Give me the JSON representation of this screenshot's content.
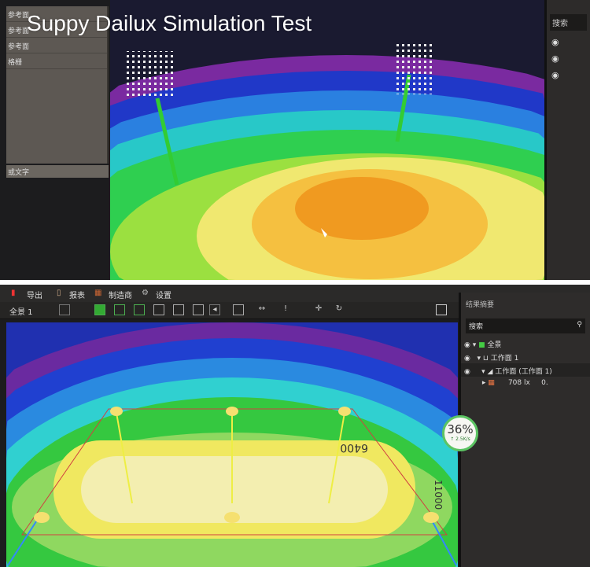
{
  "caption": "Suppy Dailux Simulation Test",
  "top_screen": {
    "left_panel": {
      "rows": [
        "参考面",
        "参考面",
        "参考面",
        "格栅"
      ],
      "footer": "或文字"
    },
    "right_panel": {
      "search": "搜索",
      "eye_icons": 3
    }
  },
  "bottom_screen": {
    "toolbar": {
      "export": "导出",
      "report": "报表",
      "manufacturer": "制造商",
      "settings": "设置"
    },
    "scene_selector": "全景 1",
    "results": {
      "title": "结果摘要",
      "search_placeholder": "搜索",
      "tree": [
        {
          "label": "全景"
        },
        {
          "label": "工作面 1"
        },
        {
          "label": "工作面 (工作面 1)"
        },
        {
          "value": "708",
          "unit": "lx",
          "extra": "0."
        }
      ]
    },
    "dimension_labels": [
      "6400",
      "11000"
    ],
    "progress_badge": {
      "percent": "36%",
      "rate": "↑ 2.5K/s"
    }
  },
  "colors": {
    "orange": "#f5a020",
    "yellow": "#f0e040",
    "green": "#3ec83a",
    "cyan": "#30d0d0",
    "blue": "#2040d0",
    "purple": "#8030a0"
  }
}
